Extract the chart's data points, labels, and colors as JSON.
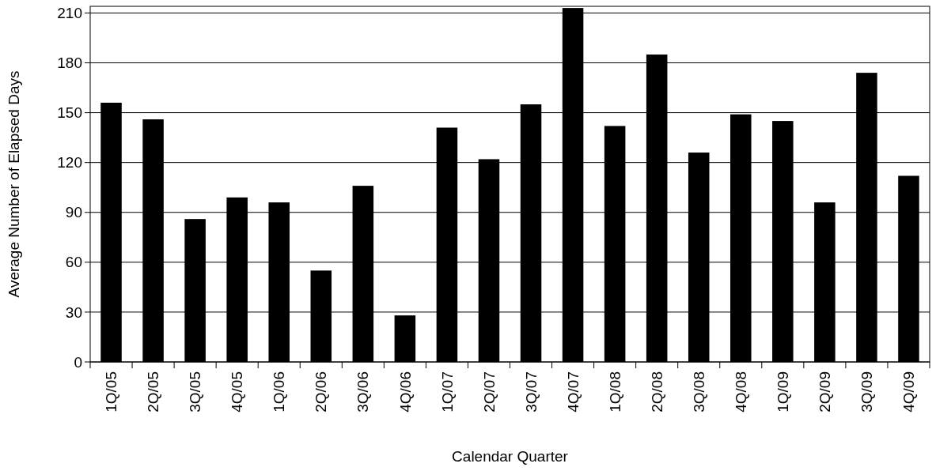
{
  "chart_data": {
    "type": "bar",
    "xlabel": "Calendar Quarter",
    "ylabel": "Average Number of Elapsed Days",
    "categories": [
      "1Q/05",
      "2Q/05",
      "3Q/05",
      "4Q/05",
      "1Q/06",
      "2Q/06",
      "3Q/06",
      "4Q/06",
      "1Q/07",
      "2Q/07",
      "3Q/07",
      "4Q/07",
      "1Q/08",
      "2Q/08",
      "3Q/08",
      "4Q/08",
      "1Q/09",
      "2Q/09",
      "3Q/09",
      "4Q/09"
    ],
    "values": [
      156,
      146,
      86,
      99,
      96,
      55,
      106,
      28,
      141,
      122,
      155,
      213,
      142,
      185,
      126,
      149,
      145,
      96,
      174,
      112
    ],
    "color": "#000000",
    "ylim": [
      0,
      214
    ],
    "yticks": [
      0,
      30,
      60,
      90,
      120,
      150,
      180,
      210
    ],
    "grid": "y"
  }
}
